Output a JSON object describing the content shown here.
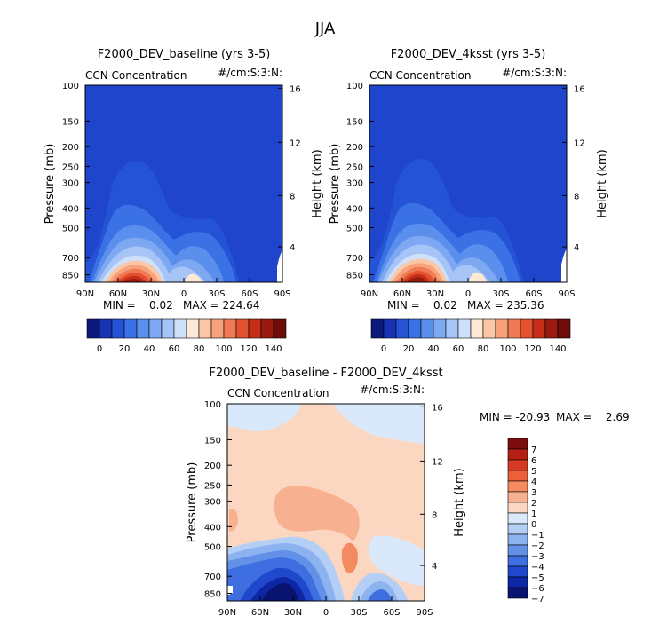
{
  "figure": {
    "title": "JJA"
  },
  "panels": [
    {
      "id": "p1",
      "title": "F2000_DEV_baseline (yrs 3-5)",
      "left_label": "CCN Concentration",
      "right_label": "#/cm:S:3:N:",
      "min_label": "MIN =    0.02",
      "max_label": "MAX = 224.64"
    },
    {
      "id": "p2",
      "title": "F2000_DEV_4ksst (yrs 3-5)",
      "left_label": "CCN Concentration",
      "right_label": "#/cm:S:3:N:",
      "min_label": "MIN =    0.02",
      "max_label": "MAX = 235.36"
    },
    {
      "id": "p3",
      "title": "F2000_DEV_baseline - F2000_DEV_4ksst",
      "left_label": "CCN Concentration",
      "right_label": "#/cm:S:3:N:",
      "min_label": "MIN = -20.93",
      "max_label": "MAX =    2.69"
    }
  ],
  "axes": {
    "ylabel": "Pressure (mb)",
    "ylabel_right": "Height (km)"
  },
  "chart_data": [
    {
      "type": "heatmap",
      "title": "F2000_DEV_baseline (yrs 3-5)",
      "xlabel": "",
      "ylabel": "Pressure (mb)",
      "ylabel_right": "Height (km)",
      "x_ticks": [
        "90N",
        "60N",
        "30N",
        "0",
        "30S",
        "60S",
        "90S"
      ],
      "x_tick_values": [
        90,
        60,
        30,
        0,
        -30,
        -60,
        -90
      ],
      "y_ticks": [
        "100",
        "150",
        "200",
        "250",
        "300",
        "400",
        "500",
        "700",
        "850"
      ],
      "y_tick_values": [
        100,
        150,
        200,
        250,
        300,
        400,
        500,
        700,
        850
      ],
      "y_right_ticks": [
        "4",
        "8",
        "12",
        "16"
      ],
      "y_right_tick_values": [
        4,
        8,
        12,
        16
      ],
      "ylim": [
        100,
        925
      ],
      "colorbar": {
        "levels": [
          0,
          10,
          20,
          30,
          40,
          50,
          60,
          70,
          80,
          90,
          100,
          110,
          120,
          130,
          140
        ],
        "tick_labels": [
          "0",
          "20",
          "40",
          "60",
          "80",
          "100",
          "120",
          "140"
        ]
      },
      "min": 0.02,
      "max": 224.64
    },
    {
      "type": "heatmap",
      "title": "F2000_DEV_4ksst (yrs 3-5)",
      "xlabel": "",
      "ylabel": "Pressure (mb)",
      "ylabel_right": "Height (km)",
      "x_ticks": [
        "90N",
        "60N",
        "30N",
        "0",
        "30S",
        "60S",
        "90S"
      ],
      "x_tick_values": [
        90,
        60,
        30,
        0,
        -30,
        -60,
        -90
      ],
      "y_ticks": [
        "100",
        "150",
        "200",
        "250",
        "300",
        "400",
        "500",
        "700",
        "850"
      ],
      "y_tick_values": [
        100,
        150,
        200,
        250,
        300,
        400,
        500,
        700,
        850
      ],
      "y_right_ticks": [
        "4",
        "8",
        "12",
        "16"
      ],
      "y_right_tick_values": [
        4,
        8,
        12,
        16
      ],
      "ylim": [
        100,
        925
      ],
      "colorbar": {
        "levels": [
          0,
          10,
          20,
          30,
          40,
          50,
          60,
          70,
          80,
          90,
          100,
          110,
          120,
          130,
          140
        ],
        "tick_labels": [
          "0",
          "20",
          "40",
          "60",
          "80",
          "100",
          "120",
          "140"
        ]
      },
      "min": 0.02,
      "max": 235.36
    },
    {
      "type": "heatmap",
      "title": "F2000_DEV_baseline - F2000_DEV_4ksst",
      "xlabel": "",
      "ylabel": "Pressure (mb)",
      "ylabel_right": "Height (km)",
      "x_ticks": [
        "90N",
        "60N",
        "30N",
        "0",
        "30S",
        "60S",
        "90S"
      ],
      "x_tick_values": [
        90,
        60,
        30,
        0,
        -30,
        -60,
        -90
      ],
      "y_ticks": [
        "100",
        "150",
        "200",
        "250",
        "300",
        "400",
        "500",
        "700",
        "850"
      ],
      "y_tick_values": [
        100,
        150,
        200,
        250,
        300,
        400,
        500,
        700,
        850
      ],
      "y_right_ticks": [
        "4",
        "8",
        "12",
        "16"
      ],
      "y_right_tick_values": [
        4,
        8,
        12,
        16
      ],
      "ylim": [
        100,
        925
      ],
      "colorbar": {
        "levels": [
          7,
          6,
          5,
          4,
          3,
          2,
          1,
          0,
          -1,
          -2,
          -3,
          -4,
          -5,
          -6,
          -7
        ],
        "tick_labels": [
          "7",
          "6",
          "5",
          "4",
          "3",
          "2",
          "1",
          "0",
          "-1",
          "-2",
          "-3",
          "-4",
          "-5",
          "-6",
          "-7"
        ]
      },
      "min": -20.93,
      "max": 2.69
    }
  ],
  "colors": {
    "background_field": "#1f45cc",
    "abs_scale": [
      "#0c1a7e",
      "#1733b3",
      "#2553d6",
      "#3a72e6",
      "#5a8fee",
      "#7ea9f2",
      "#a6c4f6",
      "#cfe0fb",
      "#fde8d6",
      "#fbc7a6",
      "#f7a27a",
      "#f07a55",
      "#e2522f",
      "#c72e19",
      "#991a0e",
      "#6d0c08"
    ],
    "diff_scale": [
      "#7a0d0d",
      "#b31f13",
      "#d63a22",
      "#ec5f3b",
      "#f48a5f",
      "#f8b190",
      "#fbd7c1",
      "#d9e8fb",
      "#b4cff6",
      "#8cb2f0",
      "#6491e8",
      "#3f6ee0",
      "#2048cc",
      "#0d26a3",
      "#081470"
    ]
  }
}
